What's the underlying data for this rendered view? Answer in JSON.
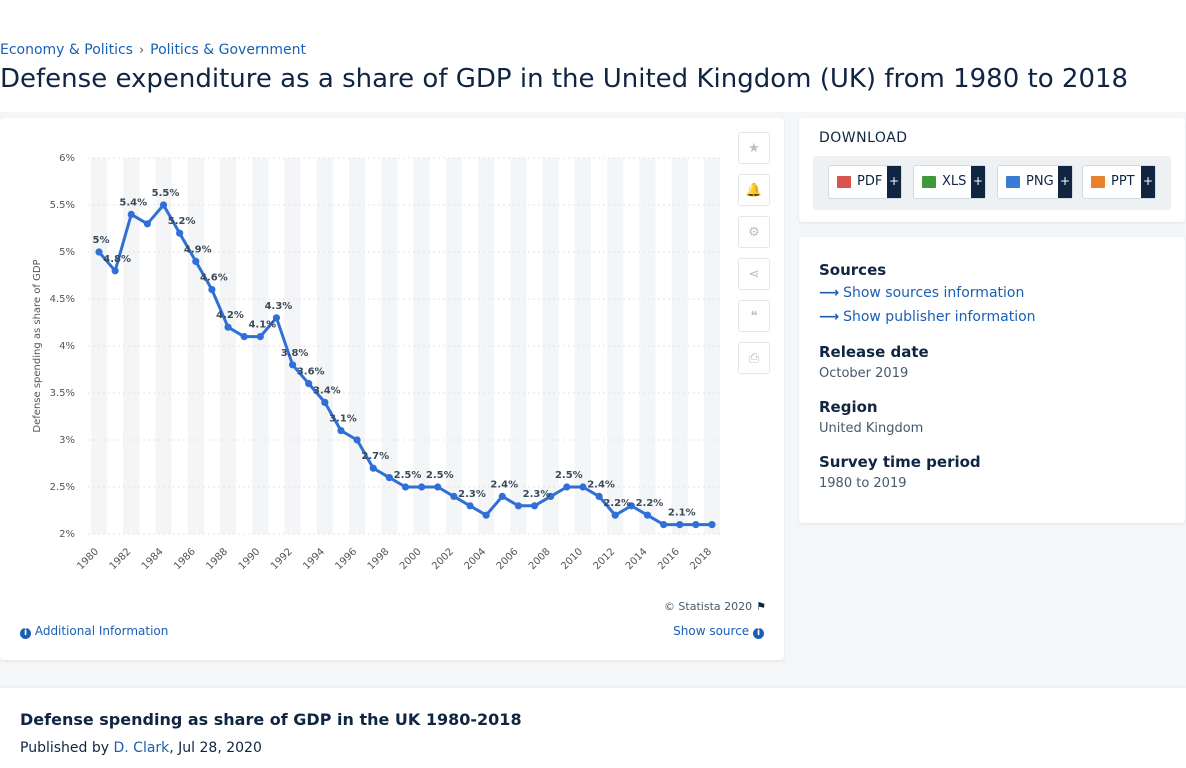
{
  "breadcrumb": {
    "items": [
      "Economy & Politics",
      "Politics & Government"
    ],
    "separator": "›"
  },
  "page_title": "Defense expenditure as a share of GDP in the United Kingdom (UK) from 1980 to 2018",
  "chart_data": {
    "type": "line",
    "title": "",
    "xlabel": "",
    "ylabel": "Defense spending as share of GDP",
    "x": [
      1980,
      1981,
      1982,
      1983,
      1984,
      1985,
      1986,
      1987,
      1988,
      1989,
      1990,
      1991,
      1992,
      1993,
      1994,
      1995,
      1996,
      1997,
      1998,
      1999,
      2000,
      2001,
      2002,
      2003,
      2004,
      2005,
      2006,
      2007,
      2008,
      2009,
      2010,
      2011,
      2012,
      2013,
      2014,
      2015,
      2016,
      2017,
      2018
    ],
    "series": [
      {
        "name": "",
        "values": [
          5.0,
          4.8,
          5.4,
          5.3,
          5.5,
          5.2,
          4.9,
          4.6,
          4.2,
          4.1,
          4.1,
          4.3,
          3.8,
          3.6,
          3.4,
          3.1,
          3.0,
          2.7,
          2.6,
          2.5,
          2.5,
          2.5,
          2.4,
          2.3,
          2.2,
          2.4,
          2.3,
          2.3,
          2.4,
          2.5,
          2.5,
          2.4,
          2.2,
          2.3,
          2.2,
          2.1,
          2.1,
          2.1,
          2.1
        ]
      }
    ],
    "data_labels": [
      {
        "x": 1980,
        "text": "5%"
      },
      {
        "x": 1981,
        "text": "4.8%"
      },
      {
        "x": 1982,
        "text": "5.4%"
      },
      {
        "x": 1984,
        "text": "5.5%"
      },
      {
        "x": 1985,
        "text": "5.2%"
      },
      {
        "x": 1986,
        "text": "4.9%"
      },
      {
        "x": 1987,
        "text": "4.6%"
      },
      {
        "x": 1988,
        "text": "4.2%"
      },
      {
        "x": 1990,
        "text": "4.1%"
      },
      {
        "x": 1991,
        "text": "4.3%"
      },
      {
        "x": 1992,
        "text": "3.8%"
      },
      {
        "x": 1993,
        "text": "3.6%"
      },
      {
        "x": 1994,
        "text": "3.4%"
      },
      {
        "x": 1995,
        "text": "3.1%"
      },
      {
        "x": 1997,
        "text": "2.7%"
      },
      {
        "x": 1999,
        "text": "2.5%"
      },
      {
        "x": 2001,
        "text": "2.5%"
      },
      {
        "x": 2003,
        "text": "2.3%"
      },
      {
        "x": 2005,
        "text": "2.4%"
      },
      {
        "x": 2007,
        "text": "2.3%"
      },
      {
        "x": 2009,
        "text": "2.5%"
      },
      {
        "x": 2011,
        "text": "2.4%"
      },
      {
        "x": 2012,
        "text": "2.2%"
      },
      {
        "x": 2014,
        "text": "2.2%"
      },
      {
        "x": 2016,
        "text": "2.1%"
      }
    ],
    "y_ticks": [
      2,
      2.5,
      3,
      3.5,
      4,
      4.5,
      5,
      5.5,
      6
    ],
    "y_tick_labels": [
      "2%",
      "2.5%",
      "3%",
      "3.5%",
      "4%",
      "4.5%",
      "5%",
      "5.5%",
      "6%"
    ],
    "x_tick_labels": [
      "1980",
      "1982",
      "1984",
      "1986",
      "1988",
      "1990",
      "1992",
      "1994",
      "1996",
      "1998",
      "2000",
      "2002",
      "2004",
      "2006",
      "2008",
      "2010",
      "2012",
      "2014",
      "2016",
      "2018"
    ],
    "ylim": [
      2,
      6
    ],
    "xlim": [
      1980,
      2018
    ],
    "grid": true,
    "line_color": "#2f6fd6"
  },
  "tools": [
    {
      "name": "favorite-icon",
      "glyph": "★"
    },
    {
      "name": "bell-icon",
      "glyph": "🔔"
    },
    {
      "name": "gear-icon",
      "glyph": "⚙"
    },
    {
      "name": "share-icon",
      "glyph": "⋖"
    },
    {
      "name": "quote-icon",
      "glyph": "❝"
    },
    {
      "name": "print-icon",
      "glyph": "⎙"
    }
  ],
  "copyright": "© Statista 2020",
  "additional_info": "Additional Information",
  "show_source": "Show source",
  "download": {
    "title": "DOWNLOAD",
    "buttons": [
      {
        "label": "PDF",
        "color": "#d9534f"
      },
      {
        "label": "XLS",
        "color": "#3c9a3c"
      },
      {
        "label": "PNG",
        "color": "#3a7bd5"
      },
      {
        "label": "PPT",
        "color": "#e8812b"
      }
    ],
    "plus": "+"
  },
  "meta": {
    "sources_heading": "Sources",
    "sources_link": "Show sources information",
    "publisher_link": "Show publisher information",
    "release_heading": "Release date",
    "release_value": "October 2019",
    "region_heading": "Region",
    "region_value": "United Kingdom",
    "survey_heading": "Survey time period",
    "survey_value": "1980 to 2019"
  },
  "bottom": {
    "title": "Defense spending as share of GDP in the UK 1980-2018",
    "published_prefix": "Published by",
    "author": "D. Clark",
    "date": ", Jul 28, 2020"
  }
}
